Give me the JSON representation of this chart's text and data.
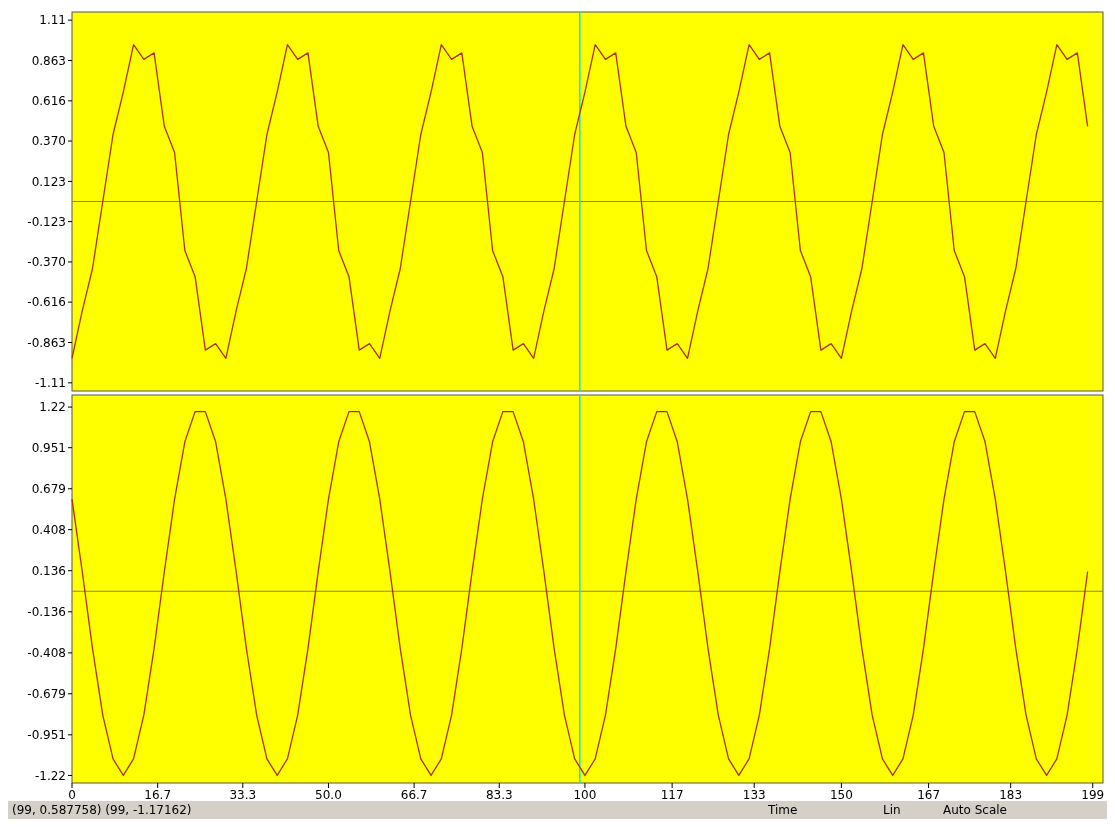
{
  "chart_data": [
    {
      "type": "line",
      "x": [
        0,
        2,
        4,
        6,
        8,
        10,
        12,
        14,
        16,
        18,
        20,
        22,
        24,
        26,
        28,
        30,
        32,
        34,
        36,
        38,
        40,
        42,
        44,
        46,
        48,
        50,
        52,
        54,
        56,
        58,
        60,
        62,
        64,
        66,
        68,
        70,
        72,
        74,
        76,
        78,
        80,
        82,
        84,
        86,
        88,
        90,
        92,
        94,
        96,
        98,
        100,
        102,
        104,
        106,
        108,
        110,
        112,
        114,
        116,
        118,
        120,
        122,
        124,
        126,
        128,
        130,
        132,
        134,
        136,
        138,
        140,
        142,
        144,
        146,
        148,
        150,
        152,
        154,
        156,
        158,
        160,
        162,
        164,
        166,
        168,
        170,
        172,
        174,
        176,
        178,
        180,
        182,
        184,
        186,
        188,
        190,
        192,
        194,
        196,
        198
      ],
      "series": [
        {
          "color": "#a83200",
          "values": [
            -0.96,
            -0.67,
            -0.41,
            0.0,
            0.41,
            0.67,
            0.96,
            0.87,
            0.91,
            0.46,
            0.3,
            -0.3,
            -0.46,
            -0.91,
            -0.87,
            -0.96,
            -0.67,
            -0.41,
            0.0,
            0.41,
            0.67,
            0.96,
            0.87,
            0.91,
            0.46,
            0.3,
            -0.3,
            -0.46,
            -0.91,
            -0.87,
            -0.96,
            -0.67,
            -0.41,
            0.0,
            0.41,
            0.67,
            0.96,
            0.87,
            0.91,
            0.46,
            0.3,
            -0.3,
            -0.46,
            -0.91,
            -0.87,
            -0.96,
            -0.67,
            -0.41,
            0.0,
            0.41,
            0.67,
            0.96,
            0.87,
            0.91,
            0.46,
            0.3,
            -0.3,
            -0.46,
            -0.91,
            -0.87,
            -0.96,
            -0.67,
            -0.41,
            0.0,
            0.41,
            0.67,
            0.96,
            0.87,
            0.91,
            0.46,
            0.3,
            -0.3,
            -0.46,
            -0.91,
            -0.87,
            -0.96,
            -0.67,
            -0.41,
            0.0,
            0.41,
            0.67,
            0.96,
            0.87,
            0.91,
            0.46,
            0.3,
            -0.3,
            -0.46,
            -0.91,
            -0.87,
            -0.96,
            -0.67,
            -0.41,
            0.0,
            0.41,
            0.67,
            0.96,
            0.87,
            0.91,
            0.46
          ]
        }
      ],
      "xlim": [
        0,
        201
      ],
      "ylim": [
        -1.16,
        1.16
      ],
      "yticks": [
        1.11,
        0.863,
        0.616,
        {
          "value": 0.37,
          "label": "0.370"
        },
        0.123,
        -0.123,
        {
          "value": -0.37,
          "label": "-0.370"
        },
        -0.616,
        -0.863,
        -1.11
      ],
      "tick_labels": "y",
      "ref_lines": [
        {
          "axis": "y",
          "value": 0,
          "color": "#808080"
        },
        {
          "axis": "x",
          "value": 99,
          "color": "#00e5ee"
        }
      ]
    },
    {
      "type": "line",
      "x": [
        0,
        2,
        4,
        6,
        8,
        10,
        12,
        14,
        16,
        18,
        20,
        22,
        24,
        26,
        28,
        30,
        32,
        34,
        36,
        38,
        40,
        42,
        44,
        46,
        48,
        50,
        52,
        54,
        56,
        58,
        60,
        62,
        64,
        66,
        68,
        70,
        72,
        74,
        76,
        78,
        80,
        82,
        84,
        86,
        88,
        90,
        92,
        94,
        96,
        98,
        100,
        102,
        104,
        106,
        108,
        110,
        112,
        114,
        116,
        118,
        120,
        122,
        124,
        126,
        128,
        130,
        132,
        134,
        136,
        138,
        140,
        142,
        144,
        146,
        148,
        150,
        152,
        154,
        156,
        158,
        160,
        162,
        164,
        166,
        168,
        170,
        172,
        174,
        176,
        178,
        180,
        182,
        184,
        186,
        188,
        190,
        192,
        194,
        196,
        198
      ],
      "series": [
        {
          "color": "#a83200",
          "values": [
            0.61,
            0.13,
            -0.38,
            -0.82,
            -1.11,
            -1.22,
            -1.11,
            -0.82,
            -0.38,
            0.13,
            0.61,
            0.99,
            1.19,
            1.19,
            0.99,
            0.61,
            0.13,
            -0.38,
            -0.82,
            -1.11,
            -1.22,
            -1.11,
            -0.82,
            -0.38,
            0.13,
            0.61,
            0.99,
            1.19,
            1.19,
            0.99,
            0.61,
            0.13,
            -0.38,
            -0.82,
            -1.11,
            -1.22,
            -1.11,
            -0.82,
            -0.38,
            0.13,
            0.61,
            0.99,
            1.19,
            1.19,
            0.99,
            0.61,
            0.13,
            -0.38,
            -0.82,
            -1.11,
            -1.22,
            -1.11,
            -0.82,
            -0.38,
            0.13,
            0.61,
            0.99,
            1.19,
            1.19,
            0.99,
            0.61,
            0.13,
            -0.38,
            -0.82,
            -1.11,
            -1.22,
            -1.11,
            -0.82,
            -0.38,
            0.13,
            0.61,
            0.99,
            1.19,
            1.19,
            0.99,
            0.61,
            0.13,
            -0.38,
            -0.82,
            -1.11,
            -1.22,
            -1.11,
            -0.82,
            -0.38,
            0.13,
            0.61,
            0.99,
            1.19,
            1.19,
            0.99,
            0.61,
            0.13,
            -0.38,
            -0.82,
            -1.11,
            -1.22,
            -1.11,
            -0.82,
            -0.38,
            0.13
          ]
        }
      ],
      "xlim": [
        0,
        201
      ],
      "ylim": [
        -1.27,
        1.3
      ],
      "yticks": [
        1.22,
        0.951,
        0.679,
        0.408,
        0.136,
        -0.136,
        -0.408,
        -0.679,
        -0.951,
        -1.22
      ],
      "xticks": [
        0,
        16.7,
        33.3,
        {
          "value": 50,
          "label": "50.0"
        },
        66.7,
        83.3,
        100,
        117,
        133,
        150,
        167,
        183,
        199
      ],
      "ref_lines": [
        {
          "axis": "y",
          "value": 0,
          "color": "#808080"
        },
        {
          "axis": "x",
          "value": 99,
          "color": "#00e5ee"
        }
      ],
      "annotations": [
        "(99, 0.587758) (99, -1.17162)",
        "Time",
        "Lin",
        "Auto Scale"
      ]
    }
  ]
}
